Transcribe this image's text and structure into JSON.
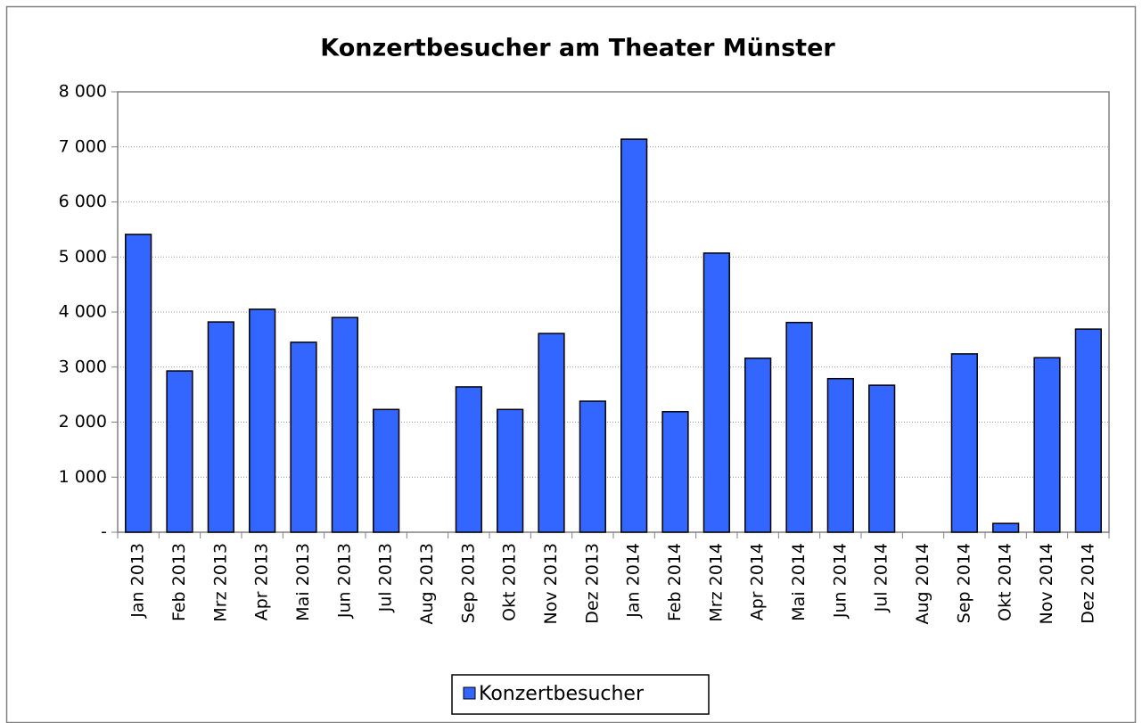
{
  "chart_data": {
    "type": "bar",
    "title": "Konzertbesucher am Theater Münster",
    "categories": [
      "Jan 2013",
      "Feb 2013",
      "Mrz 2013",
      "Apr 2013",
      "Mai 2013",
      "Jun 2013",
      "Jul 2013",
      "Aug 2013",
      "Sep 2013",
      "Okt 2013",
      "Nov 2013",
      "Dez 2013",
      "Jan 2014",
      "Feb 2014",
      "Mrz 2014",
      "Apr 2014",
      "Mai 2014",
      "Jun 2014",
      "Jul 2014",
      "Aug 2014",
      "Sep 2014",
      "Okt 2014",
      "Nov 2014",
      "Dez 2014"
    ],
    "series": [
      {
        "name": "Konzertbesucher",
        "color": "#3366ff",
        "values": [
          5410,
          2930,
          3820,
          4050,
          3450,
          3900,
          2230,
          0,
          2640,
          2230,
          3610,
          2380,
          7140,
          2190,
          5070,
          3160,
          3810,
          2790,
          2670,
          0,
          3240,
          160,
          3170,
          3690
        ]
      }
    ],
    "ylim": [
      0,
      8000
    ],
    "yticks": [
      {
        "value": 0,
        "label": "-"
      },
      {
        "value": 1000,
        "label": "1 000"
      },
      {
        "value": 2000,
        "label": "2 000"
      },
      {
        "value": 3000,
        "label": "3 000"
      },
      {
        "value": 4000,
        "label": "4 000"
      },
      {
        "value": 5000,
        "label": "5 000"
      },
      {
        "value": 6000,
        "label": "6 000"
      },
      {
        "value": 7000,
        "label": "7 000"
      },
      {
        "value": 8000,
        "label": "8 000"
      }
    ],
    "grid": true,
    "legend": "bottom"
  }
}
